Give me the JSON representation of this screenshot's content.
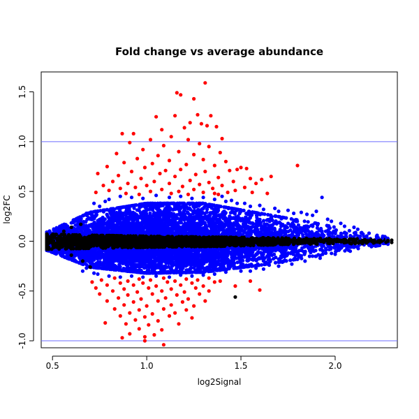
{
  "chart_data": {
    "type": "scatter",
    "title": "Fold change vs average abundance",
    "xlabel": "log2Signal",
    "ylabel": "log2FC",
    "xlim": [
      0.44,
      2.33
    ],
    "ylim": [
      -1.07,
      1.7
    ],
    "xticks": [
      "0.5",
      "1.0",
      "1.5",
      "2.0"
    ],
    "xtick_values": [
      0.5,
      1.0,
      1.5,
      2.0
    ],
    "yticks": [
      "-1.0",
      "-0.5",
      "0.0",
      "0.5",
      "1.0",
      "1.5"
    ],
    "ytick_values": [
      -1.0,
      -0.5,
      0.0,
      0.5,
      1.0,
      1.5
    ],
    "grid": false,
    "reference_lines": [
      {
        "axis": "y",
        "value": 1.0,
        "color": "#6b6bff"
      },
      {
        "axis": "y",
        "value": -1.0,
        "color": "#6b6bff"
      }
    ],
    "colors": {
      "high": "#ff0000",
      "medium": "#0000ff",
      "low": "#000000"
    },
    "series": [
      {
        "color": "#ff0000",
        "points": [
          [
            1.16,
            1.49
          ],
          [
            1.18,
            1.47
          ],
          [
            1.31,
            1.59
          ],
          [
            1.25,
            1.43
          ],
          [
            1.15,
            1.26
          ],
          [
            1.27,
            1.27
          ],
          [
            1.34,
            1.26
          ],
          [
            1.05,
            1.25
          ],
          [
            1.29,
            1.18
          ],
          [
            1.32,
            1.16
          ],
          [
            1.23,
            1.19
          ],
          [
            1.37,
            1.15
          ],
          [
            1.08,
            1.12
          ],
          [
            1.2,
            1.14
          ],
          [
            0.87,
            1.08
          ],
          [
            0.93,
            1.08
          ],
          [
            1.13,
            1.05
          ],
          [
            1.4,
            1.03
          ],
          [
            1.02,
            1.02
          ],
          [
            1.22,
            1.02
          ],
          [
            0.91,
            0.99
          ],
          [
            1.28,
            0.98
          ],
          [
            1.09,
            0.96
          ],
          [
            1.33,
            0.95
          ],
          [
            0.98,
            0.92
          ],
          [
            1.17,
            0.9
          ],
          [
            1.39,
            0.89
          ],
          [
            0.84,
            0.88
          ],
          [
            1.25,
            0.87
          ],
          [
            1.06,
            0.86
          ],
          [
            0.95,
            0.83
          ],
          [
            1.3,
            0.82
          ],
          [
            1.12,
            0.81
          ],
          [
            1.42,
            0.8
          ],
          [
            0.88,
            0.79
          ],
          [
            1.03,
            0.78
          ],
          [
            1.21,
            0.77
          ],
          [
            1.36,
            0.76
          ],
          [
            1.8,
            0.76
          ],
          [
            0.79,
            0.75
          ],
          [
            0.99,
            0.74
          ],
          [
            1.5,
            0.74
          ],
          [
            1.53,
            0.73
          ],
          [
            1.18,
            0.72
          ],
          [
            1.48,
            0.72
          ],
          [
            1.44,
            0.71
          ],
          [
            1.1,
            0.71
          ],
          [
            0.92,
            0.7
          ],
          [
            1.31,
            0.7
          ],
          [
            0.74,
            0.68
          ],
          [
            1.07,
            0.68
          ],
          [
            1.26,
            0.67
          ],
          [
            1.66,
            0.65
          ],
          [
            0.85,
            0.66
          ],
          [
            1.15,
            0.65
          ],
          [
            1.38,
            0.64
          ],
          [
            0.97,
            0.63
          ],
          [
            1.55,
            0.63
          ],
          [
            1.61,
            0.62
          ],
          [
            1.23,
            0.61
          ],
          [
            0.82,
            0.6
          ],
          [
            1.04,
            0.6
          ],
          [
            1.46,
            0.6
          ],
          [
            1.33,
            0.59
          ],
          [
            0.9,
            0.58
          ],
          [
            1.12,
            0.58
          ],
          [
            1.58,
            0.58
          ],
          [
            1.28,
            0.57
          ],
          [
            0.77,
            0.56
          ],
          [
            1.0,
            0.56
          ],
          [
            1.4,
            0.56
          ],
          [
            1.19,
            0.55
          ],
          [
            0.94,
            0.54
          ],
          [
            1.52,
            0.54
          ],
          [
            1.35,
            0.53
          ],
          [
            0.86,
            0.53
          ],
          [
            1.08,
            0.52
          ],
          [
            1.25,
            0.52
          ],
          [
            1.47,
            0.51
          ],
          [
            0.8,
            0.51
          ],
          [
            1.02,
            0.5
          ],
          [
            1.17,
            0.5
          ],
          [
            1.3,
            0.49
          ],
          [
            0.73,
            0.49
          ],
          [
            1.43,
            0.49
          ],
          [
            1.56,
            0.49
          ],
          [
            0.89,
            0.48
          ],
          [
            1.13,
            0.48
          ],
          [
            1.36,
            0.48
          ],
          [
            1.64,
            0.48
          ],
          [
            0.96,
            0.47
          ],
          [
            1.22,
            0.47
          ],
          [
            1.38,
            0.47
          ],
          [
            0.83,
            -0.37
          ],
          [
            0.96,
            -0.38
          ],
          [
            1.09,
            -0.37
          ],
          [
            1.21,
            -0.38
          ],
          [
            1.33,
            -0.37
          ],
          [
            0.76,
            -0.39
          ],
          [
            0.9,
            -0.4
          ],
          [
            1.02,
            -0.39
          ],
          [
            1.15,
            -0.4
          ],
          [
            1.27,
            -0.39
          ],
          [
            1.39,
            -0.4
          ],
          [
            1.55,
            -0.4
          ],
          [
            0.71,
            -0.41
          ],
          [
            0.86,
            -0.42
          ],
          [
            0.98,
            -0.42
          ],
          [
            1.11,
            -0.41
          ],
          [
            1.24,
            -0.42
          ],
          [
            1.36,
            -0.41
          ],
          [
            0.79,
            -0.44
          ],
          [
            0.93,
            -0.44
          ],
          [
            1.05,
            -0.45
          ],
          [
            1.18,
            -0.44
          ],
          [
            1.3,
            -0.45
          ],
          [
            1.47,
            -0.45
          ],
          [
            0.73,
            -0.47
          ],
          [
            0.88,
            -0.48
          ],
          [
            1.01,
            -0.47
          ],
          [
            1.13,
            -0.48
          ],
          [
            1.26,
            -0.47
          ],
          [
            1.6,
            -0.49
          ],
          [
            0.82,
            -0.5
          ],
          [
            0.95,
            -0.51
          ],
          [
            1.08,
            -0.5
          ],
          [
            1.2,
            -0.51
          ],
          [
            1.33,
            -0.5
          ],
          [
            0.75,
            -0.53
          ],
          [
            0.9,
            -0.54
          ],
          [
            1.03,
            -0.53
          ],
          [
            1.16,
            -0.54
          ],
          [
            1.28,
            -0.53
          ],
          [
            0.85,
            -0.57
          ],
          [
            0.97,
            -0.58
          ],
          [
            1.1,
            -0.57
          ],
          [
            1.22,
            -0.58
          ],
          [
            0.79,
            -0.6
          ],
          [
            0.93,
            -0.61
          ],
          [
            1.06,
            -0.6
          ],
          [
            1.19,
            -0.61
          ],
          [
            1.31,
            -0.6
          ],
          [
            0.88,
            -0.64
          ],
          [
            1.0,
            -0.65
          ],
          [
            1.13,
            -0.64
          ],
          [
            1.25,
            -0.65
          ],
          [
            0.83,
            -0.68
          ],
          [
            0.96,
            -0.69
          ],
          [
            1.09,
            -0.68
          ],
          [
            1.21,
            -0.69
          ],
          [
            0.91,
            -0.72
          ],
          [
            1.03,
            -0.73
          ],
          [
            1.15,
            -0.72
          ],
          [
            0.86,
            -0.75
          ],
          [
            0.99,
            -0.76
          ],
          [
            1.12,
            -0.75
          ],
          [
            1.24,
            -0.77
          ],
          [
            0.94,
            -0.79
          ],
          [
            1.06,
            -0.8
          ],
          [
            0.78,
            -0.82
          ],
          [
            0.89,
            -0.83
          ],
          [
            1.01,
            -0.84
          ],
          [
            1.17,
            -0.83
          ],
          [
            0.96,
            -0.88
          ],
          [
            1.08,
            -0.89
          ],
          [
            0.91,
            -0.93
          ],
          [
            1.04,
            -0.94
          ],
          [
            0.87,
            -0.97
          ],
          [
            0.99,
            -0.96
          ],
          [
            1.09,
            -1.04
          ],
          [
            0.99,
            -1.0
          ]
        ]
      },
      {
        "color": "#0000ff",
        "points": [
          [
            0.55,
            0.12
          ],
          [
            0.62,
            0.2
          ],
          [
            0.68,
            0.28
          ],
          [
            0.75,
            0.35
          ],
          [
            0.8,
            0.42
          ],
          [
            0.86,
            0.45
          ],
          [
            0.92,
            0.44
          ],
          [
            0.98,
            0.43
          ],
          [
            1.05,
            0.46
          ],
          [
            1.12,
            0.44
          ],
          [
            1.18,
            0.45
          ],
          [
            1.24,
            0.43
          ],
          [
            1.3,
            0.44
          ],
          [
            1.36,
            0.42
          ],
          [
            1.42,
            0.4
          ],
          [
            1.48,
            0.38
          ],
          [
            1.55,
            0.35
          ],
          [
            1.62,
            0.32
          ],
          [
            1.7,
            0.3
          ],
          [
            1.78,
            0.28
          ],
          [
            1.85,
            0.27
          ],
          [
            1.9,
            0.3
          ],
          [
            1.93,
            0.44
          ],
          [
            1.98,
            0.2
          ],
          [
            2.05,
            0.15
          ],
          [
            2.12,
            0.12
          ],
          [
            2.18,
            0.08
          ],
          [
            2.22,
            0.05
          ],
          [
            2.25,
            0.03
          ],
          [
            0.55,
            -0.12
          ],
          [
            0.62,
            -0.2
          ],
          [
            0.68,
            -0.27
          ],
          [
            0.74,
            -0.33
          ],
          [
            0.8,
            -0.35
          ],
          [
            0.86,
            -0.36
          ],
          [
            0.92,
            -0.35
          ],
          [
            0.98,
            -0.36
          ],
          [
            1.05,
            -0.35
          ],
          [
            1.12,
            -0.36
          ],
          [
            1.18,
            -0.34
          ],
          [
            1.24,
            -0.35
          ],
          [
            1.3,
            -0.34
          ],
          [
            1.36,
            -0.33
          ],
          [
            1.42,
            -0.31
          ],
          [
            1.5,
            -0.3
          ],
          [
            1.58,
            -0.27
          ],
          [
            1.65,
            -0.24
          ],
          [
            1.72,
            -0.21
          ],
          [
            1.8,
            -0.18
          ],
          [
            1.88,
            -0.15
          ],
          [
            1.95,
            -0.12
          ],
          [
            2.02,
            -0.09
          ],
          [
            2.1,
            -0.06
          ],
          [
            2.18,
            -0.04
          ],
          [
            0.72,
            0.38
          ],
          [
            0.78,
            0.4
          ],
          [
            1.4,
            0.45
          ],
          [
            1.45,
            0.41
          ],
          [
            1.52,
            0.38
          ],
          [
            1.6,
            0.36
          ],
          [
            1.68,
            0.33
          ],
          [
            1.75,
            0.31
          ],
          [
            1.82,
            0.29
          ],
          [
            1.88,
            0.26
          ],
          [
            1.96,
            0.22
          ],
          [
            2.03,
            0.18
          ],
          [
            2.1,
            0.14
          ],
          [
            0.66,
            -0.3
          ],
          [
            0.72,
            -0.32
          ],
          [
            1.55,
            -0.3
          ],
          [
            1.62,
            -0.28
          ],
          [
            1.7,
            -0.25
          ],
          [
            1.77,
            -0.23
          ],
          [
            1.84,
            -0.2
          ],
          [
            1.92,
            -0.17
          ],
          [
            2.0,
            -0.13
          ],
          [
            2.08,
            -0.1
          ]
        ]
      }
    ],
    "band_series": [
      {
        "color": "#0000ff",
        "density": 7000,
        "x_range": [
          0.47,
          2.28
        ],
        "center_upper": [
          [
            0.47,
            0.09
          ],
          [
            0.7,
            0.29
          ],
          [
            1.0,
            0.38
          ],
          [
            1.3,
            0.38
          ],
          [
            1.6,
            0.28
          ],
          [
            1.9,
            0.18
          ],
          [
            2.1,
            0.1
          ],
          [
            2.28,
            0.04
          ]
        ],
        "center_lower": [
          [
            0.47,
            -0.09
          ],
          [
            0.7,
            -0.26
          ],
          [
            1.0,
            -0.32
          ],
          [
            1.3,
            -0.31
          ],
          [
            1.6,
            -0.24
          ],
          [
            1.9,
            -0.15
          ],
          [
            2.1,
            -0.08
          ],
          [
            2.28,
            -0.03
          ]
        ]
      },
      {
        "color": "#000000",
        "density": 2600,
        "x_range": [
          0.47,
          2.3
        ],
        "center_upper": [
          [
            0.47,
            0.07
          ],
          [
            0.7,
            0.06
          ],
          [
            1.0,
            0.05
          ],
          [
            1.4,
            0.04
          ],
          [
            1.8,
            0.03
          ],
          [
            2.3,
            0.02
          ]
        ],
        "center_lower": [
          [
            0.47,
            -0.08
          ],
          [
            0.7,
            -0.07
          ],
          [
            1.0,
            -0.06
          ],
          [
            1.4,
            -0.05
          ],
          [
            1.8,
            -0.03
          ],
          [
            2.3,
            -0.02
          ]
        ]
      }
    ],
    "black_outliers": [
      [
        0.56,
        0.1
      ],
      [
        0.6,
        0.14
      ],
      [
        0.65,
        0.17
      ],
      [
        0.6,
        -0.14
      ],
      [
        0.66,
        -0.2
      ],
      [
        0.7,
        -0.26
      ],
      [
        1.47,
        -0.56
      ],
      [
        2.24,
        0.01
      ],
      [
        2.3,
        0.01
      ],
      [
        2.27,
        -0.01
      ]
    ]
  }
}
